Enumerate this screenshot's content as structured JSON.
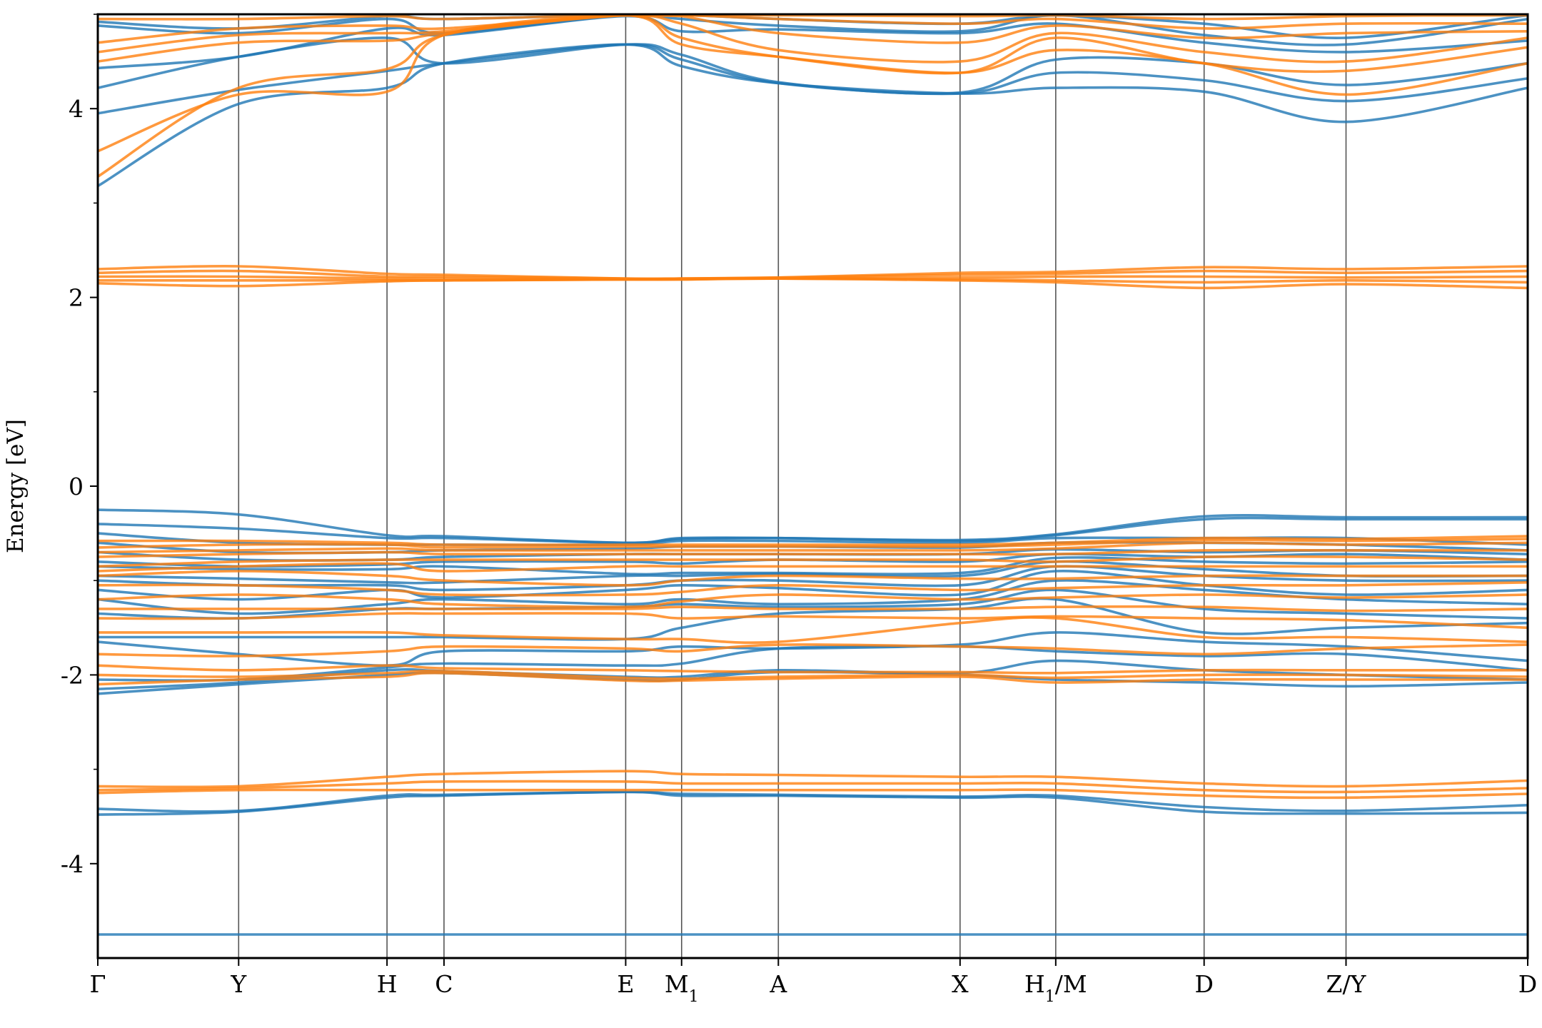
{
  "chart_data": {
    "type": "line",
    "title": "",
    "xlabel": "",
    "ylabel": "Energy [eV]",
    "ylim": [
      -5,
      5
    ],
    "xlim": [
      0,
      13.3
    ],
    "y_ticks": [
      -4,
      -2,
      0,
      2,
      4
    ],
    "y_tick_labels": [
      "-4",
      "-2",
      "0",
      "2",
      "4"
    ],
    "high_symmetry_points": [
      {
        "label": "Γ",
        "x": 0.0
      },
      {
        "label": "Y",
        "x": 1.31
      },
      {
        "label": "H",
        "x": 2.69
      },
      {
        "label": "C",
        "x": 3.22
      },
      {
        "label": "E",
        "x": 4.91
      },
      {
        "label": "M",
        "sub": "1",
        "x": 5.43
      },
      {
        "label": "A",
        "x": 6.33
      },
      {
        "label": "X",
        "x": 8.02
      },
      {
        "label": "H",
        "sub": "1",
        "suffix": "/M",
        "x": 8.91
      },
      {
        "label": "D",
        "x": 10.29
      },
      {
        "label": "Z/Y",
        "x": 11.61
      },
      {
        "label": "D",
        "x": 13.3
      }
    ],
    "grid": "vertical lines at high-symmetry points",
    "colors": {
      "spin_up": "#1f77b4",
      "spin_down": "#ff7f0e",
      "vline": "#555555",
      "frame": "#000000"
    },
    "series": [
      {
        "color": "#1f77b4",
        "bands": [
          [
            -4.75,
            -4.75,
            -4.75,
            -4.75,
            -4.75,
            -4.75,
            -4.75,
            -4.75,
            -4.75,
            -4.75,
            -4.75,
            -4.75
          ],
          [
            -3.48,
            -3.45,
            -3.3,
            -3.28,
            -3.24,
            -3.28,
            -3.28,
            -3.3,
            -3.3,
            -3.45,
            -3.47,
            -3.46
          ],
          [
            -3.42,
            -3.44,
            -3.28,
            -3.27,
            -3.24,
            -3.26,
            -3.27,
            -3.29,
            -3.28,
            -3.4,
            -3.44,
            -3.38
          ],
          [
            -2.2,
            -2.1,
            -2.0,
            -1.98,
            -2.05,
            -2.05,
            -1.97,
            -2.0,
            -2.05,
            -2.08,
            -2.12,
            -2.08
          ],
          [
            -2.15,
            -2.08,
            -1.95,
            -1.96,
            -2.02,
            -2.02,
            -1.95,
            -1.98,
            -1.85,
            -1.95,
            -2.0,
            -2.05
          ],
          [
            -2.05,
            -2.05,
            -1.92,
            -1.88,
            -1.9,
            -1.88,
            -1.72,
            -1.7,
            -1.75,
            -1.8,
            -1.78,
            -1.95
          ],
          [
            -1.65,
            -1.78,
            -1.9,
            -1.75,
            -1.75,
            -1.7,
            -1.72,
            -1.68,
            -1.55,
            -1.65,
            -1.7,
            -1.85
          ],
          [
            -1.6,
            -1.6,
            -1.6,
            -1.6,
            -1.62,
            -1.5,
            -1.35,
            -1.3,
            -1.2,
            -1.55,
            -1.5,
            -1.45
          ],
          [
            -1.35,
            -1.4,
            -1.3,
            -1.3,
            -1.28,
            -1.25,
            -1.28,
            -1.25,
            -1.1,
            -1.3,
            -1.35,
            -1.4
          ],
          [
            -1.2,
            -1.35,
            -1.25,
            -1.2,
            -1.25,
            -1.2,
            -1.25,
            -1.2,
            -1.0,
            -1.1,
            -1.2,
            -1.25
          ],
          [
            -1.1,
            -1.2,
            -1.1,
            -1.18,
            -1.1,
            -1.05,
            -1.08,
            -1.15,
            -0.9,
            -1.05,
            -1.15,
            -1.1
          ],
          [
            -1.0,
            -1.05,
            -1.05,
            -1.1,
            -1.05,
            -1.0,
            -1.0,
            -1.05,
            -0.85,
            -0.95,
            -1.0,
            -1.0
          ],
          [
            -0.95,
            -0.98,
            -1.02,
            -1.02,
            -0.95,
            -0.95,
            -0.93,
            -0.95,
            -0.8,
            -0.88,
            -0.95,
            -0.95
          ],
          [
            -0.85,
            -0.88,
            -0.88,
            -0.85,
            -0.93,
            -0.92,
            -0.92,
            -0.92,
            -0.76,
            -0.8,
            -0.82,
            -0.8
          ],
          [
            -0.8,
            -0.85,
            -0.83,
            -0.8,
            -0.8,
            -0.82,
            -0.78,
            -0.8,
            -0.72,
            -0.75,
            -0.72,
            -0.78
          ],
          [
            -0.7,
            -0.78,
            -0.78,
            -0.75,
            -0.72,
            -0.72,
            -0.72,
            -0.72,
            -0.67,
            -0.7,
            -0.68,
            -0.72
          ],
          [
            -0.6,
            -0.7,
            -0.7,
            -0.68,
            -0.66,
            -0.64,
            -0.64,
            -0.65,
            -0.6,
            -0.6,
            -0.62,
            -0.68
          ],
          [
            -0.5,
            -0.6,
            -0.62,
            -0.62,
            -0.62,
            -0.58,
            -0.58,
            -0.6,
            -0.55,
            -0.55,
            -0.55,
            -0.62
          ],
          [
            -0.4,
            -0.45,
            -0.55,
            -0.55,
            -0.6,
            -0.56,
            -0.55,
            -0.58,
            -0.52,
            -0.35,
            -0.35,
            -0.35
          ],
          [
            -0.25,
            -0.3,
            -0.52,
            -0.53,
            -0.6,
            -0.55,
            -0.55,
            -0.57,
            -0.51,
            -0.32,
            -0.33,
            -0.33
          ],
          [
            3.18,
            4.05,
            4.22,
            4.48,
            4.68,
            4.45,
            4.27,
            4.16,
            4.22,
            4.18,
            3.86,
            4.22
          ],
          [
            3.95,
            4.2,
            4.4,
            4.48,
            4.68,
            4.52,
            4.27,
            4.16,
            4.38,
            4.3,
            4.08,
            4.32
          ],
          [
            4.22,
            4.55,
            4.75,
            4.48,
            4.68,
            4.57,
            4.28,
            4.17,
            4.52,
            4.48,
            4.25,
            4.48
          ],
          [
            4.43,
            4.55,
            4.85,
            4.78,
            4.98,
            4.82,
            4.84,
            4.8,
            4.9,
            4.7,
            4.6,
            4.72
          ],
          [
            4.88,
            4.8,
            4.95,
            4.8,
            5.0,
            4.95,
            4.88,
            4.82,
            5.0,
            4.78,
            4.68,
            4.95
          ],
          [
            4.92,
            4.85,
            4.98,
            4.95,
            5.0,
            5.0,
            4.95,
            4.9,
            5.0,
            4.9,
            4.75,
            5.0
          ]
        ]
      },
      {
        "color": "#ff7f0e",
        "bands": [
          [
            -3.25,
            -3.22,
            -3.22,
            -3.22,
            -3.22,
            -3.22,
            -3.22,
            -3.22,
            -3.22,
            -3.28,
            -3.3,
            -3.26
          ],
          [
            -3.22,
            -3.2,
            -3.15,
            -3.13,
            -3.13,
            -3.15,
            -3.15,
            -3.15,
            -3.15,
            -3.22,
            -3.24,
            -3.2
          ],
          [
            -3.18,
            -3.18,
            -3.08,
            -3.05,
            -3.02,
            -3.05,
            -3.06,
            -3.08,
            -3.08,
            -3.15,
            -3.18,
            -3.12
          ],
          [
            -2.1,
            -2.05,
            -2.02,
            -1.98,
            -2.06,
            -2.06,
            -2.04,
            -2.02,
            -2.08,
            -2.05,
            -2.05,
            -2.05
          ],
          [
            -2.0,
            -2.02,
            -1.98,
            -1.96,
            -2.03,
            -2.04,
            -2.02,
            -2.0,
            -2.03,
            -2.0,
            -2.0,
            -2.02
          ],
          [
            -1.9,
            -1.95,
            -1.9,
            -1.93,
            -1.95,
            -1.96,
            -1.97,
            -1.97,
            -1.98,
            -1.95,
            -1.95,
            -1.95
          ],
          [
            -1.78,
            -1.8,
            -1.75,
            -1.7,
            -1.72,
            -1.75,
            -1.68,
            -1.7,
            -1.72,
            -1.78,
            -1.72,
            -1.68
          ],
          [
            -1.55,
            -1.55,
            -1.55,
            -1.58,
            -1.62,
            -1.62,
            -1.65,
            -1.45,
            -1.4,
            -1.6,
            -1.6,
            -1.65
          ],
          [
            -1.4,
            -1.4,
            -1.35,
            -1.35,
            -1.35,
            -1.4,
            -1.38,
            -1.4,
            -1.38,
            -1.4,
            -1.42,
            -1.5
          ],
          [
            -1.3,
            -1.3,
            -1.3,
            -1.3,
            -1.3,
            -1.28,
            -1.3,
            -1.3,
            -1.28,
            -1.28,
            -1.32,
            -1.3
          ],
          [
            -1.2,
            -1.15,
            -1.2,
            -1.25,
            -1.28,
            -1.22,
            -1.15,
            -1.2,
            -1.18,
            -1.15,
            -1.18,
            -1.15
          ],
          [
            -1.05,
            -1.05,
            -1.1,
            -1.15,
            -1.15,
            -1.12,
            -1.05,
            -1.1,
            -1.08,
            -1.05,
            -1.05,
            -1.02
          ],
          [
            -0.95,
            -0.9,
            -0.95,
            -1.0,
            -1.05,
            -1.0,
            -0.95,
            -0.98,
            -0.98,
            -0.95,
            -0.95,
            -0.95
          ],
          [
            -0.9,
            -0.85,
            -0.82,
            -0.9,
            -0.85,
            -0.85,
            -0.85,
            -0.85,
            -0.85,
            -0.85,
            -0.85,
            -0.85
          ],
          [
            -0.85,
            -0.8,
            -0.78,
            -0.78,
            -0.78,
            -0.78,
            -0.78,
            -0.78,
            -0.8,
            -0.75,
            -0.75,
            -0.78
          ],
          [
            -0.75,
            -0.72,
            -0.7,
            -0.72,
            -0.72,
            -0.72,
            -0.72,
            -0.72,
            -0.72,
            -0.68,
            -0.68,
            -0.68
          ],
          [
            -0.7,
            -0.68,
            -0.66,
            -0.68,
            -0.68,
            -0.68,
            -0.68,
            -0.68,
            -0.66,
            -0.6,
            -0.62,
            -0.6
          ],
          [
            -0.65,
            -0.62,
            -0.62,
            -0.65,
            -0.64,
            -0.64,
            -0.64,
            -0.64,
            -0.62,
            -0.57,
            -0.58,
            -0.56
          ],
          [
            -0.58,
            -0.58,
            -0.6,
            -0.62,
            -0.62,
            -0.62,
            -0.62,
            -0.62,
            -0.6,
            -0.55,
            -0.56,
            -0.53
          ],
          [
            2.15,
            2.12,
            2.17,
            2.18,
            2.19,
            2.19,
            2.2,
            2.18,
            2.16,
            2.1,
            2.14,
            2.1
          ],
          [
            2.18,
            2.18,
            2.18,
            2.18,
            2.19,
            2.19,
            2.2,
            2.19,
            2.18,
            2.16,
            2.18,
            2.16
          ],
          [
            2.22,
            2.22,
            2.2,
            2.2,
            2.19,
            2.2,
            2.2,
            2.21,
            2.22,
            2.22,
            2.21,
            2.22
          ],
          [
            2.26,
            2.28,
            2.22,
            2.22,
            2.2,
            2.2,
            2.21,
            2.24,
            2.25,
            2.28,
            2.26,
            2.28
          ],
          [
            2.3,
            2.33,
            2.25,
            2.24,
            2.2,
            2.2,
            2.21,
            2.26,
            2.27,
            2.32,
            2.3,
            2.33
          ],
          [
            3.28,
            4.22,
            4.42,
            4.78,
            5.0,
            4.68,
            4.55,
            4.38,
            4.62,
            4.48,
            4.15,
            4.48
          ],
          [
            3.55,
            4.15,
            4.18,
            4.78,
            5.0,
            4.75,
            4.55,
            4.38,
            4.75,
            4.48,
            4.4,
            4.65
          ],
          [
            4.5,
            4.7,
            4.72,
            4.8,
            5.0,
            4.9,
            4.62,
            4.5,
            4.8,
            4.6,
            4.5,
            4.75
          ],
          [
            4.6,
            4.78,
            4.8,
            4.82,
            5.0,
            4.98,
            4.8,
            4.7,
            4.88,
            4.75,
            4.8,
            4.82
          ],
          [
            4.7,
            4.85,
            4.88,
            4.85,
            5.0,
            5.0,
            4.95,
            4.9,
            4.95,
            4.85,
            4.9,
            4.9
          ],
          [
            4.95,
            4.95,
            4.98,
            4.95,
            5.0,
            5.0,
            5.0,
            4.98,
            5.0,
            4.95,
            4.98,
            5.0
          ]
        ]
      }
    ]
  }
}
